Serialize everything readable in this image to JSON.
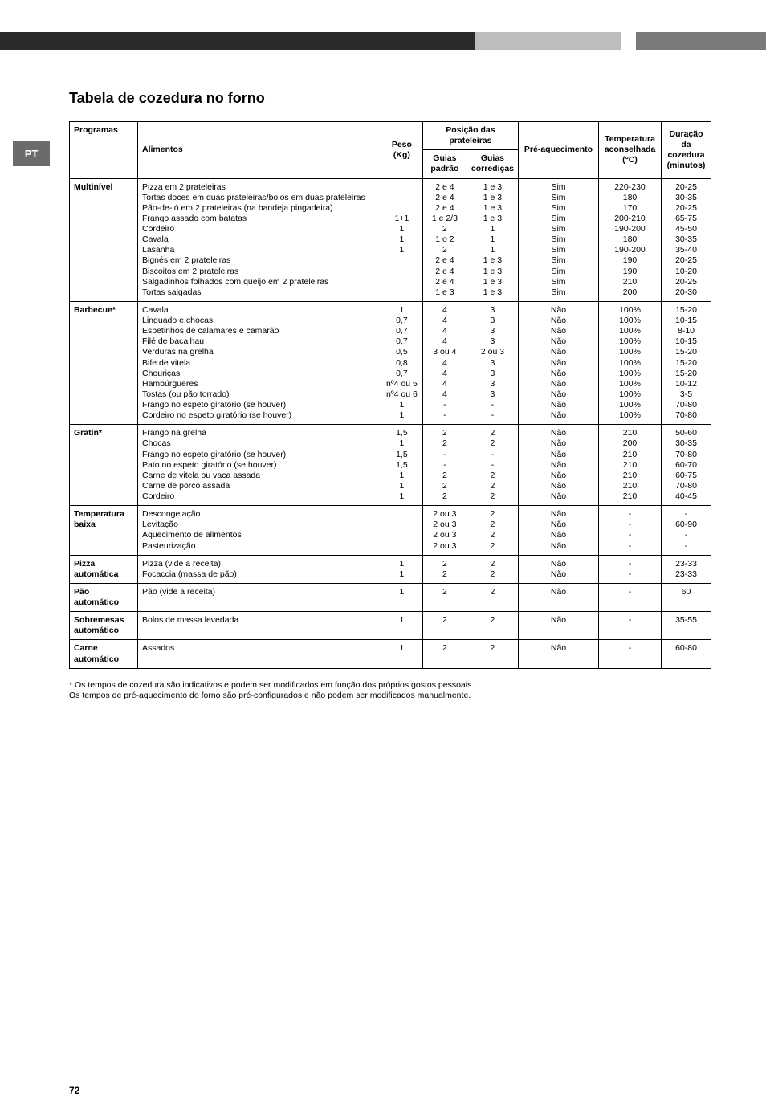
{
  "badge": "PT",
  "title": "Tabela de cozedura no forno",
  "headers": {
    "programas": "Programas",
    "alimentos": "Alimentos",
    "peso": "Peso (Kg)",
    "posicao": "Posição das prateleiras",
    "guias_padrao": "Guias padrão",
    "guias_corr": "Guias corrediças",
    "preaq": "Pré-aquecimento",
    "temp": "Temperatura aconselhada (°C)",
    "duracao": "Duração da cozedura (minutos)"
  },
  "rows": [
    {
      "program": "Multinível",
      "items": [
        {
          "alim": "Pizza em 2 prateleiras",
          "peso": "",
          "gp": "2 e 4",
          "gc": "1 e 3",
          "pre": "Sim",
          "temp": "220-230",
          "dur": "20-25"
        },
        {
          "alim": "Tortas doces em duas prateleiras/bolos em duas prateleiras",
          "peso": "",
          "gp": "2 e 4",
          "gc": "1 e 3",
          "pre": "Sim",
          "temp": "180",
          "dur": "30-35"
        },
        {
          "alim": "Pão-de-ló em 2 prateleiras (na bandeja pingadeira)",
          "peso": "",
          "gp": "2 e 4",
          "gc": "1 e 3",
          "pre": "Sim",
          "temp": "170",
          "dur": "20-25"
        },
        {
          "alim": "Frango assado com batatas",
          "peso": "1+1",
          "gp": "1 e 2/3",
          "gc": "1 e 3",
          "pre": "Sim",
          "temp": "200-210",
          "dur": "65-75"
        },
        {
          "alim": "Cordeiro",
          "peso": "1",
          "gp": "2",
          "gc": "1",
          "pre": "Sim",
          "temp": "190-200",
          "dur": "45-50"
        },
        {
          "alim": "Cavala",
          "peso": "1",
          "gp": "1 o 2",
          "gc": "1",
          "pre": "Sim",
          "temp": "180",
          "dur": "30-35"
        },
        {
          "alim": "Lasanha",
          "peso": "1",
          "gp": "2",
          "gc": "1",
          "pre": "Sim",
          "temp": "190-200",
          "dur": "35-40"
        },
        {
          "alim": "Bignés em 2 prateleiras",
          "peso": "",
          "gp": "2 e 4",
          "gc": "1 e 3",
          "pre": "Sim",
          "temp": "190",
          "dur": "20-25"
        },
        {
          "alim": "Biscoitos em 2 prateleiras",
          "peso": "",
          "gp": "2 e 4",
          "gc": "1 e 3",
          "pre": "Sim",
          "temp": "190",
          "dur": "10-20"
        },
        {
          "alim": "Salgadinhos folhados com queijo em 2 prateleiras",
          "peso": "",
          "gp": "2 e 4",
          "gc": "1 e 3",
          "pre": "Sim",
          "temp": "210",
          "dur": "20-25"
        },
        {
          "alim": "Tortas salgadas",
          "peso": "",
          "gp": "1 e 3",
          "gc": "1 e 3",
          "pre": "Sim",
          "temp": "200",
          "dur": "20-30"
        }
      ]
    },
    {
      "program": "Barbecue*",
      "items": [
        {
          "alim": "Cavala",
          "peso": "1",
          "gp": "4",
          "gc": "3",
          "pre": "Não",
          "temp": "100%",
          "dur": "15-20"
        },
        {
          "alim": "Linguado e chocas",
          "peso": "0,7",
          "gp": "4",
          "gc": "3",
          "pre": "Não",
          "temp": "100%",
          "dur": "10-15"
        },
        {
          "alim": "Espetinhos de calamares e camarão",
          "peso": "0,7",
          "gp": "4",
          "gc": "3",
          "pre": "Não",
          "temp": "100%",
          "dur": "8-10"
        },
        {
          "alim": "Filé de bacalhau",
          "peso": "0,7",
          "gp": "4",
          "gc": "3",
          "pre": "Não",
          "temp": "100%",
          "dur": "10-15"
        },
        {
          "alim": "Verduras na grelha",
          "peso": "0,5",
          "gp": "3 ou 4",
          "gc": "2 ou 3",
          "pre": "Não",
          "temp": "100%",
          "dur": "15-20"
        },
        {
          "alim": "Bife de vitela",
          "peso": "0,8",
          "gp": "4",
          "gc": "3",
          "pre": "Não",
          "temp": "100%",
          "dur": "15-20"
        },
        {
          "alim": "Chouriças",
          "peso": "0,7",
          "gp": "4",
          "gc": "3",
          "pre": "Não",
          "temp": "100%",
          "dur": "15-20"
        },
        {
          "alim": "Hambúrgueres",
          "peso": "nº4 ou 5",
          "gp": "4",
          "gc": "3",
          "pre": "Não",
          "temp": "100%",
          "dur": "10-12"
        },
        {
          "alim": "Tostas (ou pão torrado)",
          "peso": "nº4 ou 6",
          "gp": "4",
          "gc": "3",
          "pre": "Não",
          "temp": "100%",
          "dur": "3-5"
        },
        {
          "alim": "Frango no espeto giratório (se houver)",
          "peso": "1",
          "gp": "-",
          "gc": "-",
          "pre": "Não",
          "temp": "100%",
          "dur": "70-80"
        },
        {
          "alim": "Cordeiro no espeto giratório (se houver)",
          "peso": "1",
          "gp": "-",
          "gc": "-",
          "pre": "Não",
          "temp": "100%",
          "dur": "70-80"
        }
      ]
    },
    {
      "program": "Gratin*",
      "items": [
        {
          "alim": "Frango na grelha",
          "peso": "1,5",
          "gp": "2",
          "gc": "2",
          "pre": "Não",
          "temp": "210",
          "dur": "50-60"
        },
        {
          "alim": "Chocas",
          "peso": "1",
          "gp": "2",
          "gc": "2",
          "pre": "Não",
          "temp": "200",
          "dur": "30-35"
        },
        {
          "alim": "Frango no espeto giratório (se houver)",
          "peso": "1,5",
          "gp": "-",
          "gc": "-",
          "pre": "Não",
          "temp": "210",
          "dur": "70-80"
        },
        {
          "alim": "Pato no espeto giratório (se houver)",
          "peso": "1,5",
          "gp": "-",
          "gc": "-",
          "pre": "Não",
          "temp": "210",
          "dur": "60-70"
        },
        {
          "alim": "Carne de vitela ou vaca assada",
          "peso": "1",
          "gp": "2",
          "gc": "2",
          "pre": "Não",
          "temp": "210",
          "dur": "60-75"
        },
        {
          "alim": "Carne de porco assada",
          "peso": "1",
          "gp": "2",
          "gc": "2",
          "pre": "Não",
          "temp": "210",
          "dur": "70-80"
        },
        {
          "alim": "Cordeiro",
          "peso": "1",
          "gp": "2",
          "gc": "2",
          "pre": "Não",
          "temp": "210",
          "dur": "40-45"
        }
      ]
    },
    {
      "program": "Temperatura baixa",
      "items": [
        {
          "alim": "Descongelação",
          "peso": "",
          "gp": "2 ou 3",
          "gc": "2",
          "pre": "Não",
          "temp": "-",
          "dur": "-"
        },
        {
          "alim": "Levitação",
          "peso": "",
          "gp": "2 ou 3",
          "gc": "2",
          "pre": "Não",
          "temp": "-",
          "dur": "60-90"
        },
        {
          "alim": "Aquecimento de alimentos",
          "peso": "",
          "gp": "2 ou 3",
          "gc": "2",
          "pre": "Não",
          "temp": "-",
          "dur": "-"
        },
        {
          "alim": "Pasteurização",
          "peso": "",
          "gp": "2 ou 3",
          "gc": "2",
          "pre": "Não",
          "temp": "-",
          "dur": "-"
        }
      ]
    },
    {
      "program": "Pizza automática",
      "items": [
        {
          "alim": "Pizza (vide a receita)",
          "peso": "1",
          "gp": "2",
          "gc": "2",
          "pre": "Não",
          "temp": "-",
          "dur": "23-33"
        },
        {
          "alim": "Focaccia (massa de pão)",
          "peso": "1",
          "gp": "2",
          "gc": "2",
          "pre": "Não",
          "temp": "-",
          "dur": "23-33"
        }
      ]
    },
    {
      "program": "Pão automático",
      "items": [
        {
          "alim": "Pão (vide a receita)",
          "peso": "1",
          "gp": "2",
          "gc": "2",
          "pre": "Não",
          "temp": "-",
          "dur": "60"
        }
      ]
    },
    {
      "program": "Sobremesas automático",
      "items": [
        {
          "alim": "Bolos de massa levedada",
          "peso": "1",
          "gp": "2",
          "gc": "2",
          "pre": "Não",
          "temp": "-",
          "dur": "35-55"
        }
      ]
    },
    {
      "program": "Carne automático",
      "items": [
        {
          "alim": "Assados",
          "peso": "1",
          "gp": "2",
          "gc": "2",
          "pre": "Não",
          "temp": "-",
          "dur": "60-80"
        }
      ]
    }
  ],
  "footnote1": "* Os tempos de cozedura são indicativos e podem ser modificados em função dos próprios gostos pessoais.",
  "footnote2": "Os tempos de pré-aquecimento do forno são pré-configurados e não podem ser modificados manualmente.",
  "pagenum": "72"
}
